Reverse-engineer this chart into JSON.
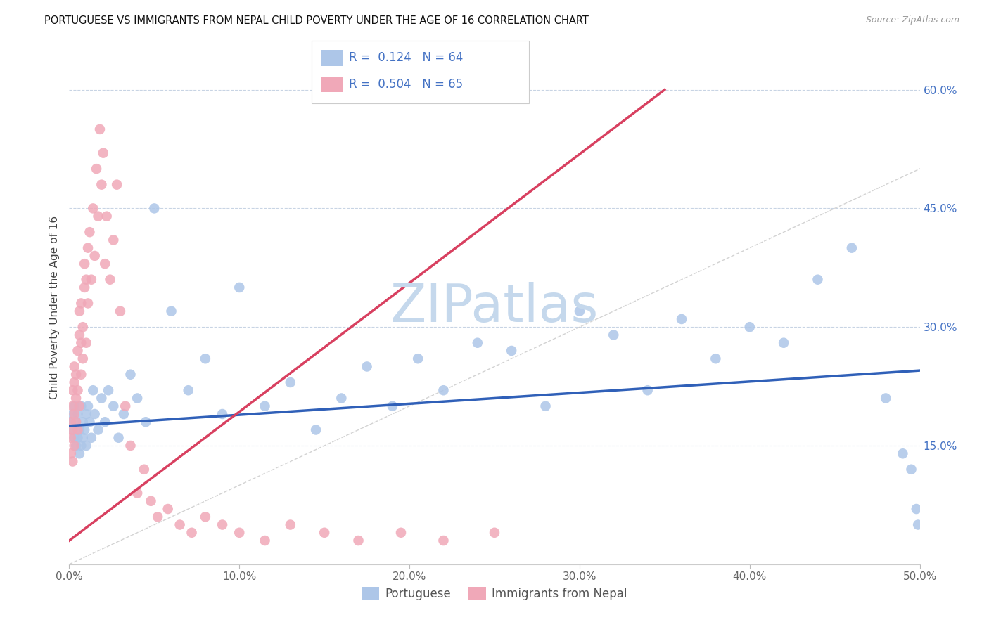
{
  "title": "PORTUGUESE VS IMMIGRANTS FROM NEPAL CHILD POVERTY UNDER THE AGE OF 16 CORRELATION CHART",
  "source": "Source: ZipAtlas.com",
  "ylabel": "Child Poverty Under the Age of 16",
  "xlim": [
    0,
    0.5
  ],
  "ylim": [
    0,
    0.65
  ],
  "xticks": [
    0.0,
    0.1,
    0.2,
    0.3,
    0.4,
    0.5
  ],
  "xtick_labels": [
    "0.0%",
    "10.0%",
    "20.0%",
    "30.0%",
    "40.0%",
    "50.0%"
  ],
  "yticks_right": [
    0.15,
    0.3,
    0.45,
    0.6
  ],
  "ytick_labels_right": [
    "15.0%",
    "30.0%",
    "45.0%",
    "60.0%"
  ],
  "R_portuguese": 0.124,
  "N_portuguese": 64,
  "R_nepal": 0.504,
  "N_nepal": 65,
  "color_portuguese": "#adc6e8",
  "color_nepal": "#f0a8b8",
  "line_color_portuguese": "#3060b8",
  "line_color_nepal": "#d84060",
  "watermark": "ZIPatlas",
  "watermark_color": "#c5d8ec",
  "legend_label_portuguese": "Portuguese",
  "legend_label_nepal": "Immigrants from Nepal",
  "port_x": [
    0.001,
    0.002,
    0.002,
    0.003,
    0.003,
    0.004,
    0.004,
    0.005,
    0.005,
    0.006,
    0.006,
    0.007,
    0.007,
    0.008,
    0.008,
    0.009,
    0.01,
    0.01,
    0.011,
    0.012,
    0.013,
    0.014,
    0.015,
    0.017,
    0.019,
    0.021,
    0.023,
    0.026,
    0.029,
    0.032,
    0.036,
    0.04,
    0.045,
    0.05,
    0.06,
    0.07,
    0.08,
    0.09,
    0.1,
    0.115,
    0.13,
    0.145,
    0.16,
    0.175,
    0.19,
    0.205,
    0.22,
    0.24,
    0.26,
    0.28,
    0.3,
    0.32,
    0.34,
    0.36,
    0.38,
    0.4,
    0.42,
    0.44,
    0.46,
    0.48,
    0.49,
    0.495,
    0.498,
    0.499
  ],
  "port_y": [
    0.18,
    0.17,
    0.19,
    0.16,
    0.2,
    0.15,
    0.18,
    0.16,
    0.19,
    0.14,
    0.17,
    0.2,
    0.15,
    0.18,
    0.16,
    0.17,
    0.19,
    0.15,
    0.2,
    0.18,
    0.16,
    0.22,
    0.19,
    0.17,
    0.21,
    0.18,
    0.22,
    0.2,
    0.16,
    0.19,
    0.24,
    0.21,
    0.18,
    0.45,
    0.32,
    0.22,
    0.26,
    0.19,
    0.35,
    0.2,
    0.23,
    0.17,
    0.21,
    0.25,
    0.2,
    0.26,
    0.22,
    0.28,
    0.27,
    0.2,
    0.32,
    0.29,
    0.22,
    0.31,
    0.26,
    0.3,
    0.28,
    0.36,
    0.4,
    0.21,
    0.14,
    0.12,
    0.07,
    0.05
  ],
  "nepal_x": [
    0.001,
    0.001,
    0.001,
    0.002,
    0.002,
    0.002,
    0.002,
    0.003,
    0.003,
    0.003,
    0.003,
    0.004,
    0.004,
    0.004,
    0.005,
    0.005,
    0.005,
    0.006,
    0.006,
    0.006,
    0.007,
    0.007,
    0.007,
    0.008,
    0.008,
    0.009,
    0.009,
    0.01,
    0.01,
    0.011,
    0.011,
    0.012,
    0.013,
    0.014,
    0.015,
    0.016,
    0.017,
    0.018,
    0.019,
    0.02,
    0.021,
    0.022,
    0.024,
    0.026,
    0.028,
    0.03,
    0.033,
    0.036,
    0.04,
    0.044,
    0.048,
    0.052,
    0.058,
    0.065,
    0.072,
    0.08,
    0.09,
    0.1,
    0.115,
    0.13,
    0.15,
    0.17,
    0.195,
    0.22,
    0.25
  ],
  "nepal_y": [
    0.14,
    0.16,
    0.18,
    0.13,
    0.17,
    0.2,
    0.22,
    0.15,
    0.19,
    0.23,
    0.25,
    0.18,
    0.21,
    0.24,
    0.17,
    0.22,
    0.27,
    0.2,
    0.29,
    0.32,
    0.24,
    0.28,
    0.33,
    0.3,
    0.26,
    0.35,
    0.38,
    0.28,
    0.36,
    0.33,
    0.4,
    0.42,
    0.36,
    0.45,
    0.39,
    0.5,
    0.44,
    0.55,
    0.48,
    0.52,
    0.38,
    0.44,
    0.36,
    0.41,
    0.48,
    0.32,
    0.2,
    0.15,
    0.09,
    0.12,
    0.08,
    0.06,
    0.07,
    0.05,
    0.04,
    0.06,
    0.05,
    0.04,
    0.03,
    0.05,
    0.04,
    0.03,
    0.04,
    0.03,
    0.04
  ],
  "port_trend_x": [
    0.0,
    0.5
  ],
  "port_trend_y": [
    0.175,
    0.245
  ],
  "nepal_trend_x": [
    0.0,
    0.35
  ],
  "nepal_trend_y": [
    0.03,
    0.6
  ]
}
